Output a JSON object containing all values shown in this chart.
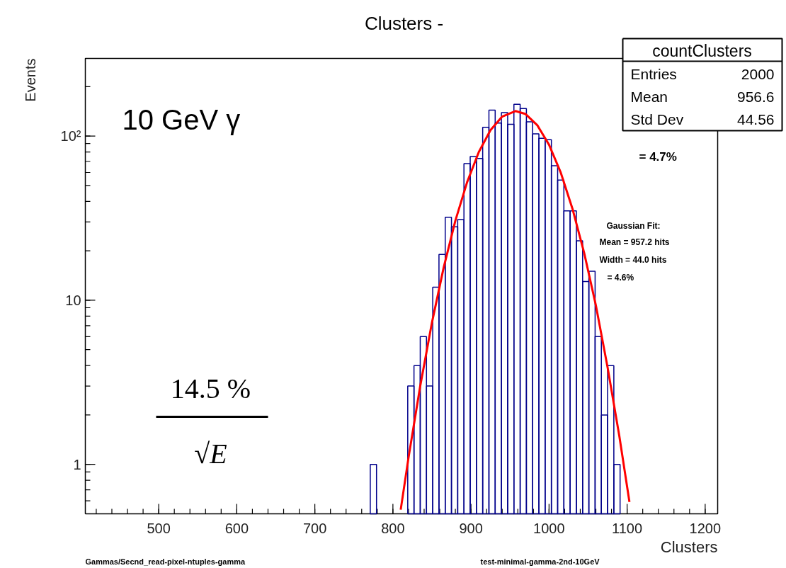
{
  "chart_data": {
    "type": "histogram",
    "title": "Clusters -",
    "xlabel": "Clusters",
    "ylabel": "Events",
    "bins": [
      771,
      779,
      787,
      795,
      803,
      811,
      819,
      827,
      835,
      843,
      851,
      859,
      867,
      875,
      883,
      891,
      899,
      907,
      915,
      923,
      931,
      939,
      947,
      955,
      963,
      971,
      979,
      987,
      995,
      1003,
      1011,
      1019,
      1027,
      1035,
      1043,
      1051,
      1059,
      1067,
      1075,
      1083,
      1091
    ],
    "values": [
      1,
      null,
      null,
      null,
      null,
      null,
      3,
      4,
      6,
      3,
      12,
      19,
      32,
      28,
      31,
      68,
      75,
      73,
      113,
      144,
      120,
      139,
      118,
      156,
      147,
      122,
      103,
      97,
      95,
      66,
      54,
      35,
      35,
      23,
      13,
      15,
      6,
      2,
      4,
      1
    ],
    "color": "#00008b",
    "series": [
      {
        "type": "line",
        "color": "#ff0000",
        "x": [
          810,
          820,
          835,
          850,
          865,
          880,
          895,
          910,
          925,
          940,
          957,
          970,
          985,
          1000,
          1015,
          1030,
          1045,
          1060,
          1075,
          1090,
          1103
        ],
        "values": [
          0.53,
          1.1,
          3.0,
          7.3,
          15.8,
          30.5,
          52.3,
          79.9,
          108.6,
          131.5,
          142,
          136.1,
          116.3,
          88.5,
          59.9,
          36.1,
          19.4,
          9.3,
          3.9,
          1.49,
          0.59
        ]
      }
    ],
    "xlim": [
      406,
      1216
    ],
    "ylim": [
      0.5,
      297
    ],
    "log": true,
    "grid": false,
    "marker": "none",
    "line_style": "solid",
    "xticks": [
      500,
      600,
      700,
      800,
      900,
      1000,
      1100,
      1200
    ],
    "yticks": [
      1,
      10,
      {
        "value": 100,
        "label": "10²"
      }
    ],
    "annotations": [
      "countClusters",
      "Entries",
      "2000",
      "Mean",
      "956.6",
      "Std Dev",
      "44.56",
      "10 GeV γ",
      "= 4.7%",
      "Gaussian Fit:",
      "Mean = 957.2 hits",
      "Width = 44.0 hits",
      "= 4.6%",
      "14.5 %",
      "√E",
      "Gammas/Secnd_read-pixel-ntuples-gamma",
      "test-minimal-gamma-2nd-10GeV"
    ]
  }
}
